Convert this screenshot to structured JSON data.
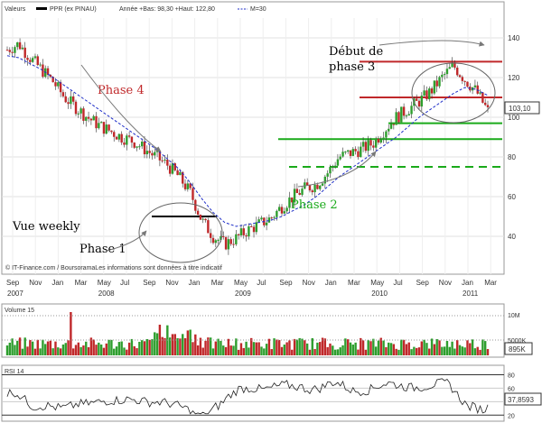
{
  "legend": {
    "main": [
      "Valeurs",
      "PPR (ex PINAU)",
      "Année +Bas: 98,30 +Haut: 122,80",
      "M=30"
    ],
    "volume": "Volume 15",
    "rsi": "RSI 14"
  },
  "copyright": "© IT-Finance.com / BoursoramaLes informations sont données à titre indicatif",
  "x_months": [
    "Sep",
    "Nov",
    "Jan",
    "Mar",
    "May",
    "Jul",
    "Sep",
    "Nov",
    "Jan",
    "Mar",
    "May",
    "Jul",
    "Sep",
    "Nov",
    "Jan",
    "Mar",
    "May",
    "Jul",
    "Sep",
    "Nov",
    "Jan",
    "Mar"
  ],
  "x_years": [
    "2007",
    "2008",
    "2009",
    "2010",
    "2011"
  ],
  "price_ticks": [
    "40",
    "60",
    "80",
    "100",
    "120",
    "140"
  ],
  "volume_ticks": [
    "5000K",
    "10M"
  ],
  "rsi_ticks": [
    "20",
    "40",
    "60",
    "80"
  ],
  "badges": {
    "price": "103,10",
    "volume": "895K",
    "rsi": "37,8593"
  },
  "annotations": {
    "phase4": "Phase 4",
    "phase1": "Phase 1",
    "phase2": "Phase 2",
    "phase3_line1": "Début de",
    "phase3_line2": "phase 3",
    "vue": "Vue weekly"
  },
  "colors": {
    "up": "#2e9e2e",
    "down": "#c0282a",
    "ma": "#1e2ec8",
    "green": "#1aaa1a",
    "red": "#c0282a"
  },
  "chart_data": {
    "type": "line",
    "ylim": [
      25,
      150
    ],
    "x": [
      0,
      1,
      2,
      3,
      4,
      5,
      6,
      7,
      8,
      9,
      10,
      11,
      12,
      13,
      14,
      15,
      16,
      17,
      18,
      19,
      20,
      21,
      22,
      23,
      24,
      25,
      26,
      27,
      28,
      29,
      30,
      31,
      32,
      33,
      34,
      35,
      36,
      37,
      38,
      39,
      40,
      41,
      42
    ],
    "series": [
      {
        "name": "PPR (ex PINAU)",
        "values": [
          134,
          137,
          130,
          124,
          118,
          110,
          105,
          100,
          96,
          93,
          90,
          88,
          84,
          80,
          76,
          70,
          62,
          48,
          40,
          36,
          39,
          43,
          46,
          49,
          55,
          60,
          64,
          66,
          72,
          80,
          82,
          84,
          87,
          94,
          100,
          104,
          108,
          113,
          120,
          126,
          119,
          113,
          103
        ]
      },
      {
        "name": "M=30",
        "values": [
          131,
          130,
          127,
          124,
          120,
          116,
          112,
          108,
          104,
          100,
          96,
          92,
          88,
          84,
          79,
          74,
          67,
          59,
          52,
          47,
          45,
          46,
          47,
          48,
          50,
          53,
          56,
          60,
          65,
          70,
          74,
          78,
          82,
          86,
          90,
          95,
          100,
          104,
          108,
          112,
          115,
          114,
          111
        ]
      }
    ],
    "levels": {
      "red": [
        128,
        110
      ],
      "green_solid": [
        97,
        89
      ],
      "green_dashed": 75,
      "black_phase1": 50
    }
  }
}
